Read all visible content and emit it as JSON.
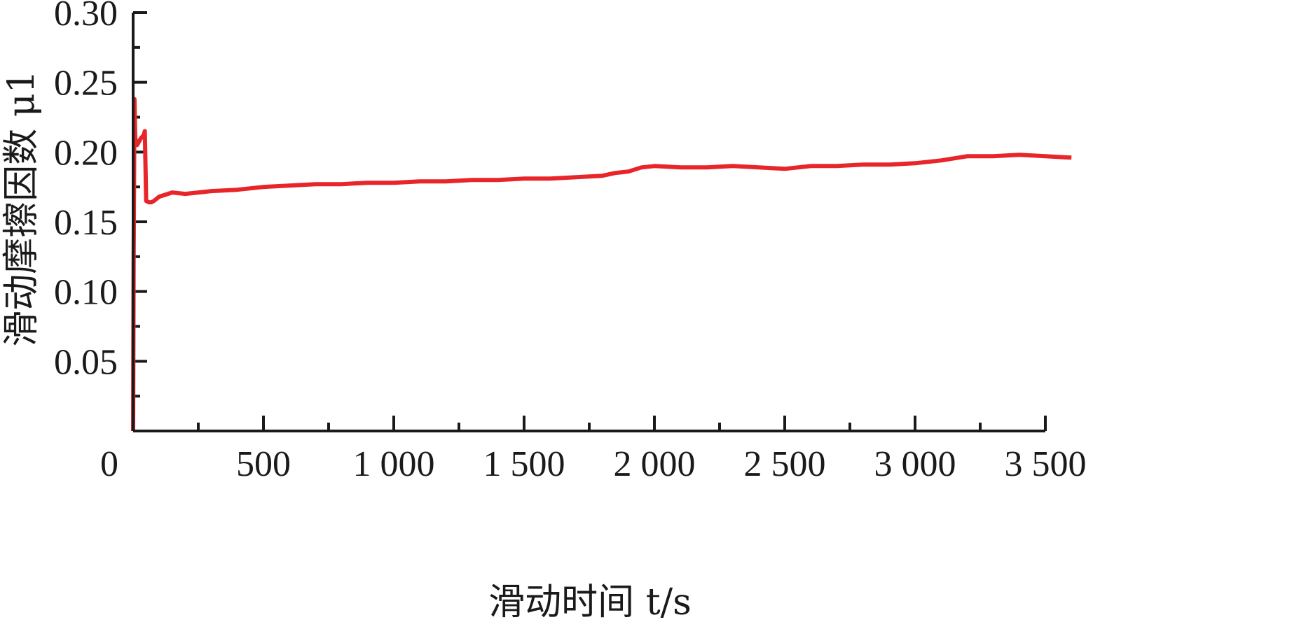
{
  "chart_data": {
    "type": "line",
    "xlabel": "滑动时间 t/s",
    "ylabel": "滑动摩擦因数 μ1",
    "xlim": [
      0,
      3500
    ],
    "ylim": [
      0,
      0.3
    ],
    "x_ticks": [
      0,
      500,
      1000,
      1500,
      2000,
      2500,
      3000,
      3500
    ],
    "x_tick_labels": [
      "0",
      "500",
      "1 000",
      "1 500",
      "2 000",
      "2 500",
      "3 000",
      "3 500"
    ],
    "y_ticks": [
      0.05,
      0.1,
      0.15,
      0.2,
      0.25,
      0.3
    ],
    "y_tick_labels": [
      "0.05",
      "0.10",
      "0.15",
      "0.20",
      "0.25",
      "0.30"
    ],
    "grid": false,
    "series": [
      {
        "color": "#e8262a",
        "x": [
          0,
          2,
          5,
          8,
          15,
          30,
          40,
          45,
          50,
          60,
          70,
          80,
          100,
          150,
          200,
          300,
          400,
          500,
          600,
          700,
          800,
          900,
          1000,
          1100,
          1200,
          1300,
          1400,
          1500,
          1600,
          1700,
          1800,
          1850,
          1900,
          1950,
          2000,
          2100,
          2200,
          2300,
          2400,
          2500,
          2600,
          2700,
          2800,
          2900,
          3000,
          3100,
          3200,
          3300,
          3400,
          3500,
          3600
        ],
        "y": [
          0.0,
          0.12,
          0.238,
          0.21,
          0.205,
          0.21,
          0.212,
          0.215,
          0.165,
          0.164,
          0.164,
          0.165,
          0.168,
          0.171,
          0.17,
          0.172,
          0.173,
          0.175,
          0.176,
          0.177,
          0.177,
          0.178,
          0.178,
          0.179,
          0.179,
          0.18,
          0.18,
          0.181,
          0.181,
          0.182,
          0.183,
          0.185,
          0.186,
          0.189,
          0.19,
          0.189,
          0.189,
          0.19,
          0.189,
          0.188,
          0.19,
          0.19,
          0.191,
          0.191,
          0.192,
          0.194,
          0.197,
          0.197,
          0.198,
          0.197,
          0.196
        ]
      }
    ]
  }
}
